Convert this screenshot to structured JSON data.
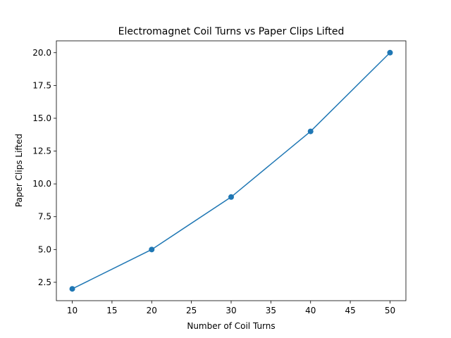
{
  "chart_data": {
    "type": "line",
    "title": "Electromagnet Coil Turns vs Paper Clips Lifted",
    "x_label": "Number of Coil Turns",
    "y_label": "Paper Clips Lifted",
    "x": [
      10,
      20,
      30,
      40,
      50
    ],
    "series": [
      {
        "color": "#1f77b4",
        "values": [
          2,
          5,
          9,
          14,
          20
        ]
      }
    ],
    "xlim": [
      8,
      52
    ],
    "xticks": [
      10,
      15,
      20,
      25,
      30,
      35,
      40,
      45,
      50
    ],
    "ylim": [
      1.1,
      20.9
    ],
    "yticks": [
      2.5,
      {
        "value": 5,
        "label": "5.0"
      },
      7.5,
      {
        "value": 10,
        "label": "10.0"
      },
      12.5,
      {
        "value": 15,
        "label": "15.0"
      },
      17.5,
      {
        "value": 20,
        "label": "20.0"
      }
    ],
    "markers": true
  }
}
